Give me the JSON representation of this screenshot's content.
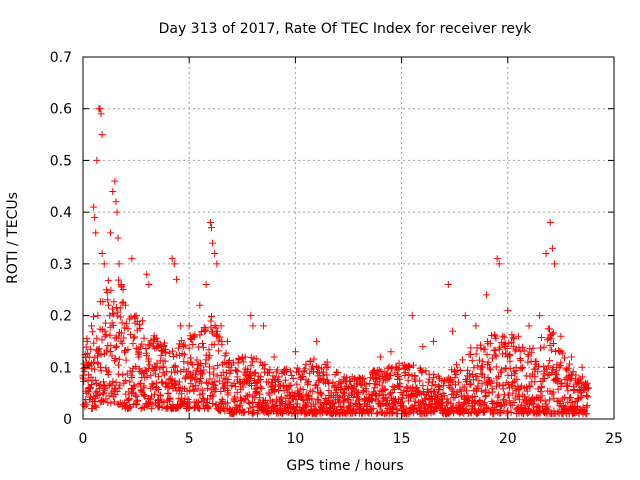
{
  "chart_data": {
    "type": "scatter",
    "title": "Day 313 of 2017, Rate Of TEC Index for receiver reyk",
    "xlabel": "GPS time / hours",
    "ylabel": "ROTI / TECUs",
    "xlim": [
      0,
      25
    ],
    "ylim": [
      0,
      0.7
    ],
    "xticks": [
      0,
      5,
      10,
      15,
      20,
      25
    ],
    "yticks": [
      0,
      0.1,
      0.2,
      0.3,
      0.4,
      0.5,
      0.6,
      0.7
    ],
    "xtick_labels": [
      "0",
      "5",
      "10",
      "15",
      "20",
      "25"
    ],
    "ytick_labels": [
      "0",
      "0.1",
      "0.2",
      "0.3",
      "0.4",
      "0.5",
      "0.6",
      "0.7"
    ],
    "grid": true,
    "marker": "+",
    "marker_color": "#ff0000",
    "x_data_range": [
      0,
      23.8
    ],
    "series": [
      {
        "name": "ROTI",
        "points": [
          [
            0.2,
            0.15
          ],
          [
            0.3,
            0.12
          ],
          [
            0.4,
            0.18
          ],
          [
            0.5,
            0.41
          ],
          [
            0.55,
            0.39
          ],
          [
            0.6,
            0.36
          ],
          [
            0.65,
            0.5
          ],
          [
            0.7,
            0.2
          ],
          [
            0.75,
            0.6
          ],
          [
            0.8,
            0.6
          ],
          [
            0.85,
            0.59
          ],
          [
            0.9,
            0.55
          ],
          [
            0.9,
            0.32
          ],
          [
            1.0,
            0.3
          ],
          [
            1.1,
            0.25
          ],
          [
            1.2,
            0.22
          ],
          [
            1.3,
            0.36
          ],
          [
            1.4,
            0.44
          ],
          [
            1.5,
            0.46
          ],
          [
            1.55,
            0.42
          ],
          [
            1.6,
            0.4
          ],
          [
            1.65,
            0.35
          ],
          [
            1.7,
            0.3
          ],
          [
            1.8,
            0.26
          ],
          [
            2.0,
            0.22
          ],
          [
            2.3,
            0.31
          ],
          [
            2.5,
            0.2
          ],
          [
            2.8,
            0.19
          ],
          [
            3.0,
            0.28
          ],
          [
            3.1,
            0.26
          ],
          [
            3.5,
            0.15
          ],
          [
            3.8,
            0.14
          ],
          [
            4.2,
            0.31
          ],
          [
            4.3,
            0.3
          ],
          [
            4.4,
            0.27
          ],
          [
            4.6,
            0.18
          ],
          [
            5.0,
            0.18
          ],
          [
            5.5,
            0.22
          ],
          [
            5.8,
            0.26
          ],
          [
            6.0,
            0.38
          ],
          [
            6.05,
            0.37
          ],
          [
            6.1,
            0.34
          ],
          [
            6.2,
            0.32
          ],
          [
            6.3,
            0.3
          ],
          [
            6.5,
            0.18
          ],
          [
            6.8,
            0.15
          ],
          [
            7.5,
            0.12
          ],
          [
            7.9,
            0.2
          ],
          [
            8.0,
            0.18
          ],
          [
            8.5,
            0.18
          ],
          [
            9.0,
            0.12
          ],
          [
            10.0,
            0.13
          ],
          [
            11.0,
            0.15
          ],
          [
            11.5,
            0.11
          ],
          [
            12.0,
            0.09
          ],
          [
            13.0,
            0.08
          ],
          [
            14.0,
            0.12
          ],
          [
            14.5,
            0.13
          ],
          [
            15.5,
            0.2
          ],
          [
            16.0,
            0.14
          ],
          [
            16.5,
            0.15
          ],
          [
            17.2,
            0.26
          ],
          [
            17.4,
            0.17
          ],
          [
            18.0,
            0.2
          ],
          [
            18.5,
            0.18
          ],
          [
            19.0,
            0.24
          ],
          [
            19.5,
            0.31
          ],
          [
            19.6,
            0.3
          ],
          [
            20.0,
            0.21
          ],
          [
            20.5,
            0.16
          ],
          [
            21.0,
            0.18
          ],
          [
            21.5,
            0.2
          ],
          [
            21.8,
            0.32
          ],
          [
            22.0,
            0.38
          ],
          [
            22.1,
            0.33
          ],
          [
            22.2,
            0.3
          ],
          [
            22.5,
            0.16
          ],
          [
            23.0,
            0.12
          ],
          [
            23.5,
            0.1
          ],
          [
            23.8,
            0.06
          ]
        ],
        "envelope": {
          "x": [
            0,
            0.5,
            1,
            1.5,
            2,
            3,
            4,
            5,
            6,
            7,
            8,
            9,
            10,
            11,
            12,
            13,
            14,
            15,
            16,
            17,
            18,
            19,
            20,
            21,
            22,
            23,
            23.8
          ],
          "y_max": [
            0.14,
            0.2,
            0.26,
            0.3,
            0.24,
            0.17,
            0.15,
            0.16,
            0.21,
            0.12,
            0.12,
            0.1,
            0.1,
            0.12,
            0.09,
            0.08,
            0.1,
            0.11,
            0.1,
            0.08,
            0.13,
            0.16,
            0.17,
            0.14,
            0.18,
            0.1,
            0.07
          ],
          "y_min": [
            0.02,
            0.02,
            0.03,
            0.03,
            0.02,
            0.02,
            0.02,
            0.02,
            0.02,
            0.01,
            0.01,
            0.01,
            0.01,
            0.01,
            0.01,
            0.01,
            0.01,
            0.01,
            0.01,
            0.01,
            0.01,
            0.01,
            0.01,
            0.01,
            0.01,
            0.01,
            0.01
          ]
        }
      }
    ]
  }
}
